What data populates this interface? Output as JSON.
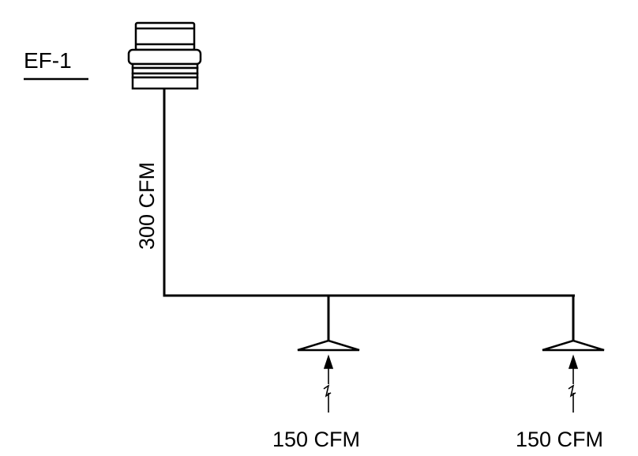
{
  "fan": {
    "tag": "EF-1"
  },
  "main_duct": {
    "airflow_label": "300 CFM"
  },
  "grilles": [
    {
      "airflow_label": "150 CFM"
    },
    {
      "airflow_label": "150 CFM"
    }
  ]
}
